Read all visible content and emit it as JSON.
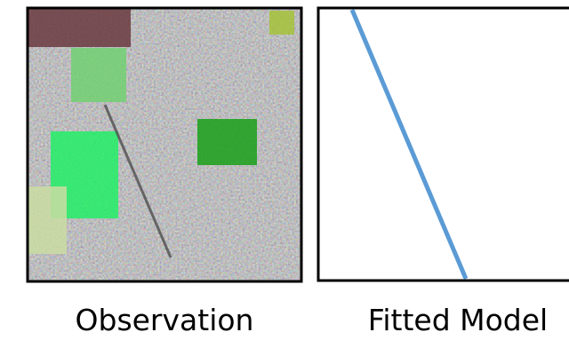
{
  "panels": [
    {
      "label": "Observation"
    },
    {
      "label": "Fitted Model"
    }
  ]
}
